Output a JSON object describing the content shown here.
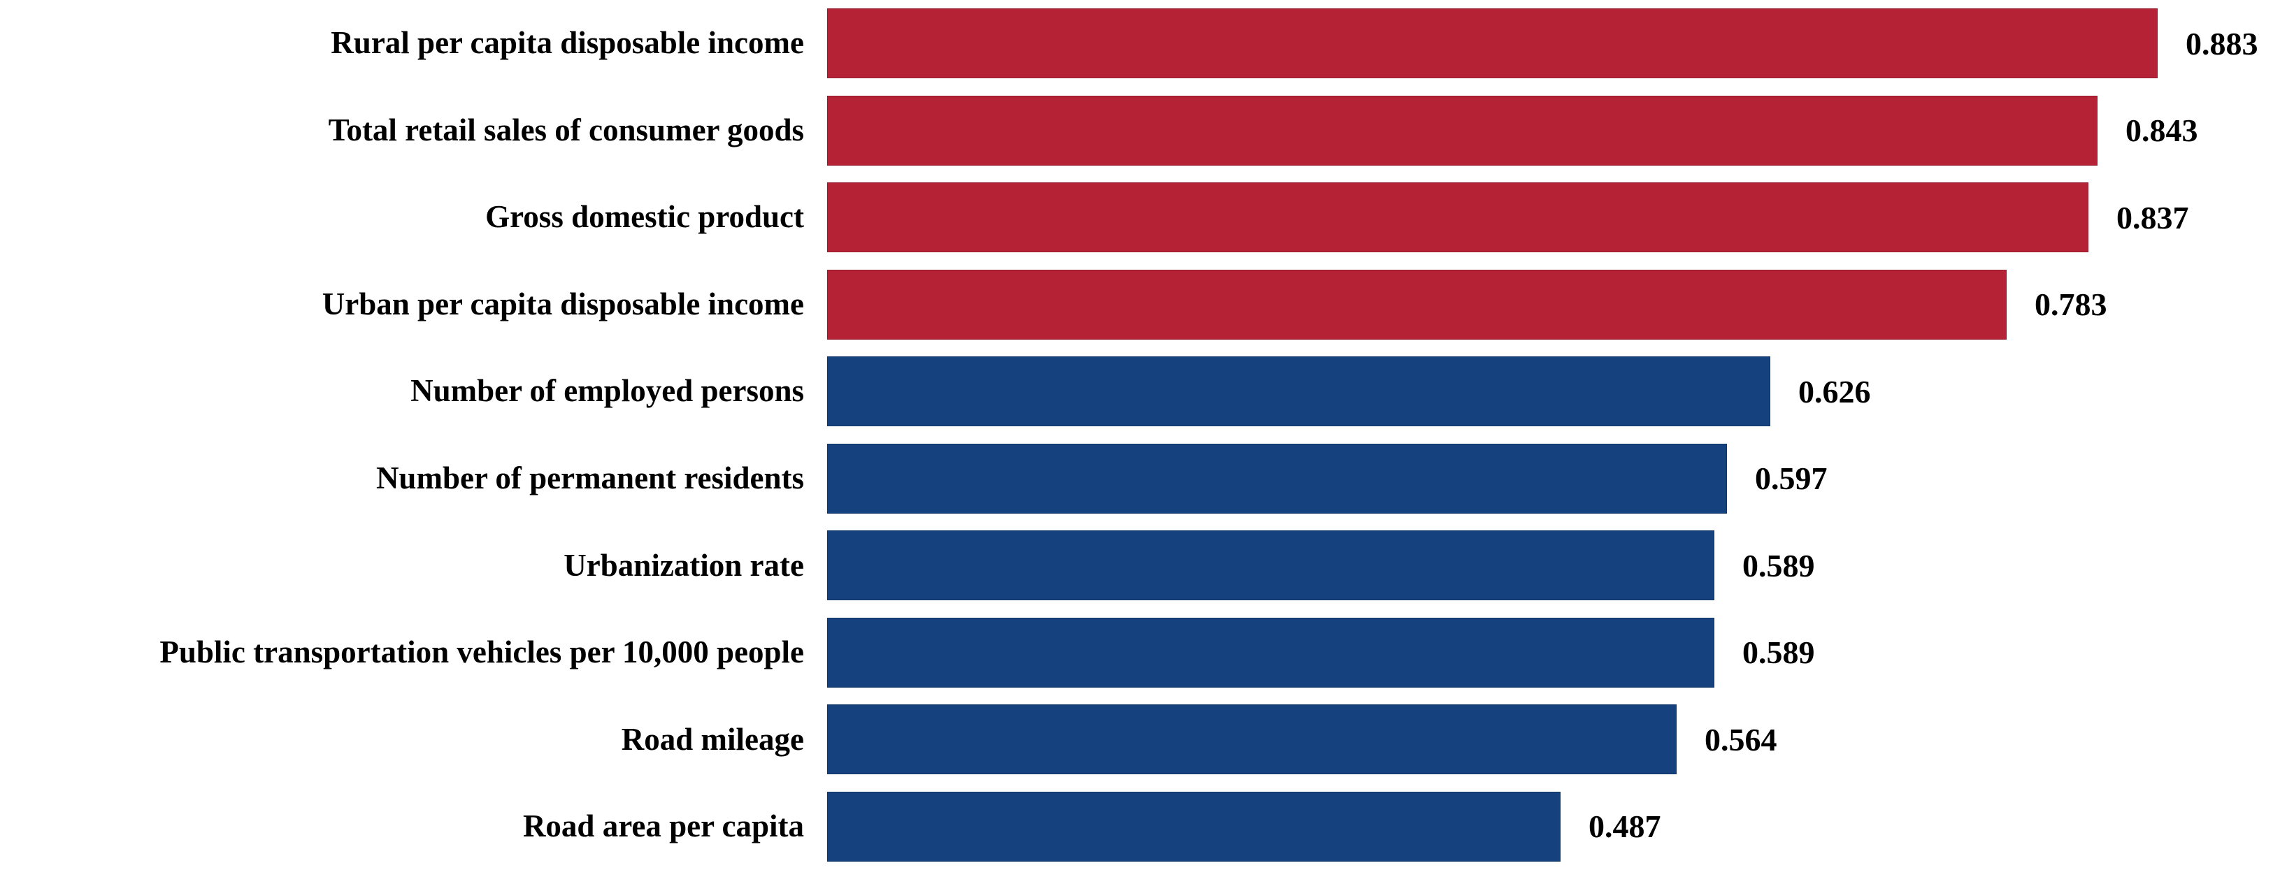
{
  "chart_data": {
    "type": "bar",
    "orientation": "horizontal",
    "title": "",
    "xlabel": "",
    "ylabel": "",
    "xlim": [
      0,
      1.0
    ],
    "grid": false,
    "legend": null,
    "categories": [
      "Rural per capita disposable income",
      "Total retail sales of consumer goods",
      "Gross domestic product",
      "Urban per capita disposable income",
      "Number of employed persons",
      "Number of permanent residents",
      "Urbanization rate",
      "Public transportation vehicles per 10,000 people",
      "Road mileage",
      "Road area per capita"
    ],
    "values": [
      0.883,
      0.843,
      0.837,
      0.783,
      0.626,
      0.597,
      0.589,
      0.589,
      0.564,
      0.487
    ],
    "value_labels": [
      "0.883",
      "0.843",
      "0.837",
      "0.783",
      "0.626",
      "0.597",
      "0.589",
      "0.589",
      "0.564",
      "0.487"
    ],
    "bar_colors": [
      "#B52235",
      "#B52235",
      "#B52235",
      "#B52235",
      "#15417E",
      "#15417E",
      "#15417E",
      "#15417E",
      "#15417E",
      "#15417E"
    ],
    "color_groups": [
      {
        "name": "economic-indicators",
        "color": "#B52235",
        "bar_count": 4
      },
      {
        "name": "population-transport-indicators",
        "color": "#15417E",
        "bar_count": 6
      }
    ]
  }
}
